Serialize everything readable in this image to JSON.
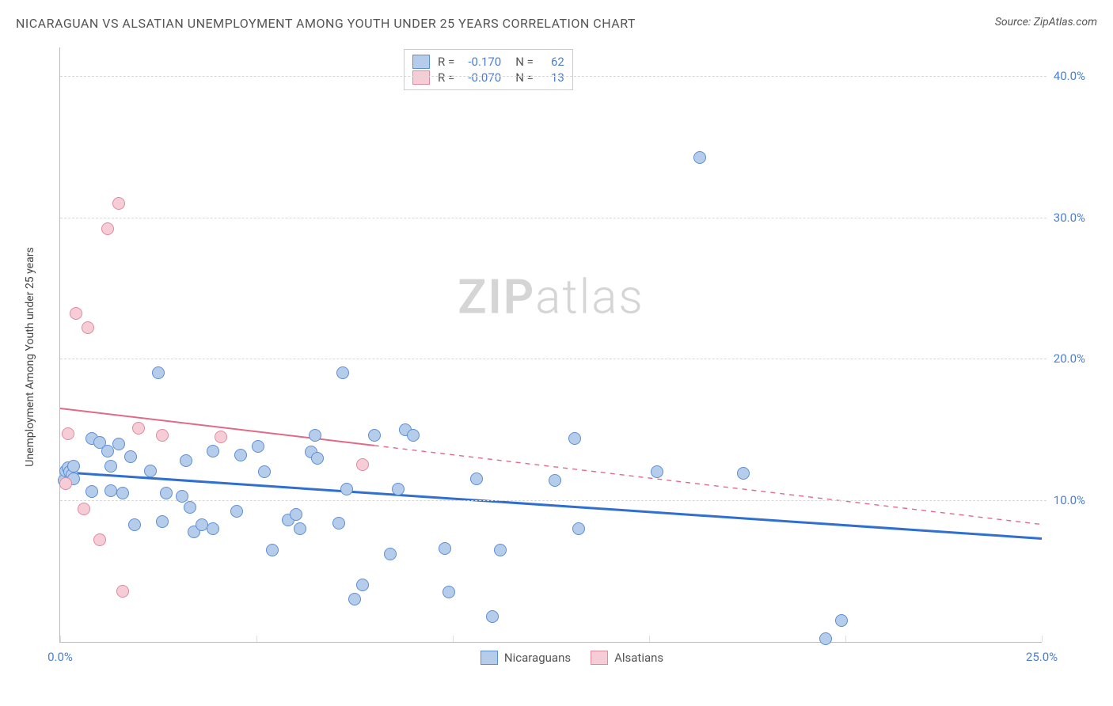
{
  "header": {
    "title": "NICARAGUAN VS ALSATIAN UNEMPLOYMENT AMONG YOUTH UNDER 25 YEARS CORRELATION CHART",
    "source": "Source: ZipAtlas.com"
  },
  "watermark": {
    "part1": "ZIP",
    "part2": "atlas"
  },
  "chart": {
    "type": "scatter",
    "y_axis_label": "Unemployment Among Youth under 25 years",
    "xlim": [
      0,
      25
    ],
    "ylim": [
      0,
      42
    ],
    "x_ticks": [
      0,
      5,
      10,
      15,
      20,
      25
    ],
    "x_tick_labels": {
      "0": "0.0%",
      "25": "25.0%"
    },
    "y_ticks": [
      10,
      20,
      30,
      40
    ],
    "y_tick_labels": {
      "10": "10.0%",
      "20": "20.0%",
      "30": "30.0%",
      "40": "40.0%"
    },
    "background_color": "#ffffff",
    "grid_color": "#d8d8d8",
    "point_radius": 8,
    "label_color": "#4b7fd1",
    "series": [
      {
        "name": "Nicaraguans",
        "fill_color": "#b5cdea",
        "stroke_color": "#5c8ed6",
        "trend_color": "#2f6fd0",
        "trend_width": 3,
        "r": "-0.170",
        "n": "62",
        "trend": {
          "x1": 0,
          "y1": 12.0,
          "x2": 25,
          "y2": 7.3,
          "solid_until_x": 25
        },
        "points": [
          [
            0.1,
            11.4
          ],
          [
            0.15,
            12.1
          ],
          [
            0.2,
            12.3
          ],
          [
            0.25,
            12.0
          ],
          [
            0.3,
            11.8
          ],
          [
            0.35,
            11.5
          ],
          [
            0.35,
            12.4
          ],
          [
            0.8,
            14.4
          ],
          [
            0.8,
            10.6
          ],
          [
            1.0,
            14.1
          ],
          [
            1.2,
            13.5
          ],
          [
            1.3,
            12.4
          ],
          [
            1.3,
            10.7
          ],
          [
            1.5,
            14.0
          ],
          [
            1.6,
            10.5
          ],
          [
            1.8,
            13.1
          ],
          [
            1.9,
            8.3
          ],
          [
            2.3,
            12.1
          ],
          [
            2.5,
            19.0
          ],
          [
            2.6,
            8.5
          ],
          [
            2.7,
            10.5
          ],
          [
            3.1,
            10.3
          ],
          [
            3.2,
            12.8
          ],
          [
            3.3,
            9.5
          ],
          [
            3.4,
            7.8
          ],
          [
            3.6,
            8.3
          ],
          [
            3.9,
            8.0
          ],
          [
            3.9,
            13.5
          ],
          [
            4.5,
            9.2
          ],
          [
            4.6,
            13.2
          ],
          [
            5.05,
            13.8
          ],
          [
            5.2,
            12.0
          ],
          [
            5.4,
            6.5
          ],
          [
            5.8,
            8.6
          ],
          [
            6.0,
            9.0
          ],
          [
            6.1,
            8.0
          ],
          [
            6.4,
            13.4
          ],
          [
            6.5,
            14.6
          ],
          [
            6.55,
            13.0
          ],
          [
            7.1,
            8.4
          ],
          [
            7.2,
            19.0
          ],
          [
            7.3,
            10.8
          ],
          [
            7.5,
            3.0
          ],
          [
            7.7,
            4.0
          ],
          [
            8.0,
            14.6
          ],
          [
            8.4,
            6.2
          ],
          [
            8.6,
            10.8
          ],
          [
            8.8,
            15.0
          ],
          [
            9.0,
            14.6
          ],
          [
            9.8,
            6.6
          ],
          [
            9.9,
            3.5
          ],
          [
            10.6,
            11.5
          ],
          [
            11.0,
            1.8
          ],
          [
            11.2,
            6.5
          ],
          [
            12.6,
            11.4
          ],
          [
            13.2,
            8.0
          ],
          [
            13.1,
            14.4
          ],
          [
            15.2,
            12.0
          ],
          [
            16.3,
            34.2
          ],
          [
            17.4,
            11.9
          ],
          [
            19.5,
            0.25
          ],
          [
            19.9,
            1.5
          ]
        ]
      },
      {
        "name": "Alsatians",
        "fill_color": "#f6cdd6",
        "stroke_color": "#e08aa0",
        "trend_color": "#e06a88",
        "trend_width": 2,
        "r": "-0.070",
        "n": "13",
        "trend": {
          "x1": 0,
          "y1": 16.5,
          "x2": 25,
          "y2": 8.3,
          "solid_until_x": 8
        },
        "points": [
          [
            0.2,
            14.7
          ],
          [
            0.15,
            11.2
          ],
          [
            0.4,
            23.2
          ],
          [
            0.6,
            9.4
          ],
          [
            0.7,
            22.2
          ],
          [
            1.0,
            7.2
          ],
          [
            1.2,
            29.2
          ],
          [
            1.5,
            31.0
          ],
          [
            1.6,
            3.6
          ],
          [
            2.0,
            15.1
          ],
          [
            2.6,
            14.6
          ],
          [
            4.1,
            14.5
          ],
          [
            7.7,
            12.5
          ]
        ]
      }
    ]
  },
  "legend_top": {
    "r_label": "R =",
    "n_label": "N ="
  },
  "legend_bottom": {
    "items": [
      "Nicaraguans",
      "Alsatians"
    ]
  }
}
